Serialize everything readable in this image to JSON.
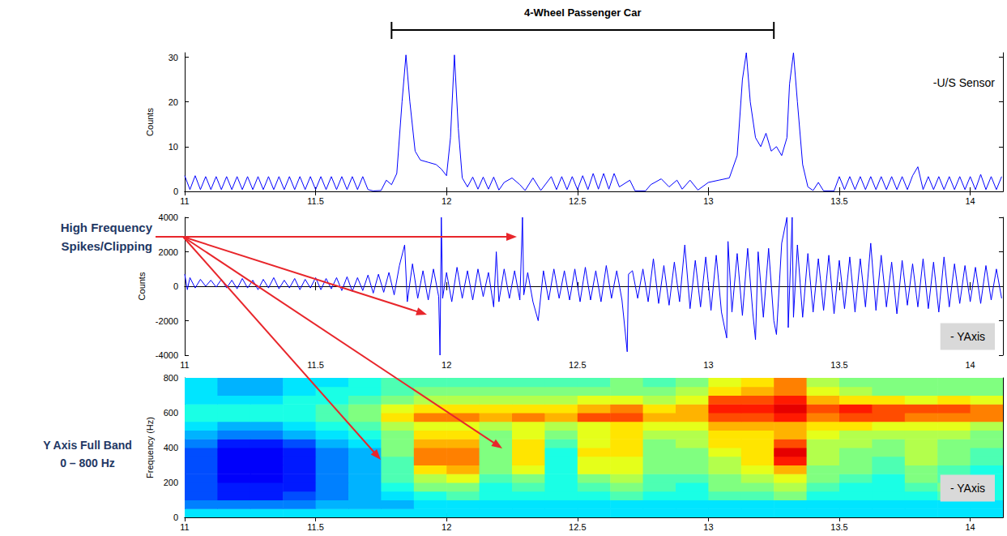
{
  "chart_data": [
    {
      "type": "line",
      "ylabel": "Counts",
      "color": "#0000ff",
      "grid": false,
      "xlim": [
        11,
        14.125
      ],
      "xticks": [
        11,
        11.5,
        12,
        12.5,
        13,
        13.5,
        14
      ],
      "ylim": [
        0,
        31
      ],
      "yticks": [
        0,
        10,
        20,
        30
      ],
      "annotations": [
        {
          "text": "4-Wheel Passenger Car",
          "x_span": [
            11.79,
            13.25
          ]
        },
        {
          "text": "-U/S Sensor"
        }
      ],
      "x": [
        11,
        11.02,
        11.04,
        11.06,
        11.08,
        11.1,
        11.12,
        11.14,
        11.16,
        11.18,
        11.2,
        11.22,
        11.24,
        11.26,
        11.28,
        11.3,
        11.32,
        11.34,
        11.36,
        11.38,
        11.4,
        11.42,
        11.44,
        11.46,
        11.48,
        11.5,
        11.52,
        11.54,
        11.56,
        11.58,
        11.6,
        11.62,
        11.64,
        11.66,
        11.68,
        11.7,
        11.72,
        11.75,
        11.77,
        11.79,
        11.81,
        11.83,
        11.845,
        11.86,
        11.88,
        11.9,
        11.93,
        11.96,
        11.98,
        12,
        12.015,
        12.03,
        12.045,
        12.06,
        12.08,
        12.1,
        12.12,
        12.14,
        12.16,
        12.18,
        12.2,
        12.22,
        12.25,
        12.28,
        12.3,
        12.33,
        12.36,
        12.4,
        12.42,
        12.44,
        12.46,
        12.48,
        12.5,
        12.52,
        12.54,
        12.56,
        12.58,
        12.6,
        12.62,
        12.64,
        12.66,
        12.7,
        12.72,
        12.76,
        12.78,
        12.82,
        12.85,
        12.88,
        12.9,
        12.93,
        12.96,
        13,
        13.04,
        13.08,
        13.11,
        13.13,
        13.145,
        13.16,
        13.18,
        13.2,
        13.22,
        13.24,
        13.26,
        13.28,
        13.3,
        13.31,
        13.325,
        13.34,
        13.36,
        13.38,
        13.4,
        13.42,
        13.44,
        13.48,
        13.5,
        13.52,
        13.54,
        13.56,
        13.58,
        13.6,
        13.62,
        13.64,
        13.66,
        13.68,
        13.7,
        13.72,
        13.74,
        13.76,
        13.78,
        13.8,
        13.82,
        13.84,
        13.86,
        13.88,
        13.9,
        13.92,
        13.94,
        13.96,
        13.98,
        14,
        14.02,
        14.04,
        14.06,
        14.08,
        14.1,
        14.12
      ],
      "values": [
        3.5,
        0.4,
        3.5,
        0.4,
        3.3,
        0.4,
        3.3,
        0.4,
        3.3,
        0.4,
        3.3,
        0.4,
        3.3,
        0.4,
        3.3,
        0.4,
        3.3,
        0.4,
        3.3,
        0.4,
        3.3,
        0.4,
        3.3,
        0.4,
        3.3,
        0.4,
        3.3,
        0.4,
        3.3,
        0.4,
        3.3,
        0.4,
        3.3,
        0.4,
        3.3,
        0.4,
        0.1,
        0.2,
        2.5,
        1.5,
        4,
        20,
        30.5,
        20,
        9,
        7,
        6.5,
        6,
        5,
        3.5,
        12,
        30.5,
        14,
        3,
        1,
        3.2,
        0.5,
        3.2,
        0.5,
        3.2,
        0.3,
        2,
        3,
        1.5,
        0.2,
        3,
        0.2,
        3.3,
        0.4,
        3.3,
        0.4,
        3.3,
        0.4,
        3.5,
        0.4,
        4,
        0.5,
        4,
        0.5,
        4,
        1,
        2.5,
        0.1,
        0.1,
        1.5,
        2.8,
        1,
        2.5,
        0.5,
        2.5,
        0.3,
        2,
        2.5,
        3,
        8,
        25,
        31,
        20,
        12,
        10,
        13,
        9,
        10,
        8,
        12,
        24,
        31,
        20,
        6,
        1,
        0.2,
        2,
        0.1,
        0.1,
        3.3,
        0.4,
        3.3,
        0.4,
        3.3,
        0.4,
        3.3,
        0.4,
        3.3,
        0.4,
        3.3,
        0.4,
        3.3,
        0.4,
        3.5,
        5.5,
        0.4,
        3.3,
        0.4,
        3.3,
        0.4,
        3.3,
        0.4,
        3.3,
        0.4,
        3.3,
        0.4,
        3.8,
        0.4,
        3.3,
        0.4,
        3.3
      ]
    },
    {
      "type": "line",
      "ylabel": "Counts",
      "color": "#0000ff",
      "grid": false,
      "xlim": [
        11,
        14.125
      ],
      "xticks": [
        11,
        11.5,
        12,
        12.5,
        13,
        13.5,
        14
      ],
      "ylim": [
        -4000,
        4000
      ],
      "yticks": [
        -4000,
        -2000,
        0,
        2000,
        4000
      ],
      "annotations": [
        {
          "text": "- YAxis"
        }
      ],
      "x": [
        11,
        11.01,
        11.02,
        11.04,
        11.06,
        11.08,
        11.1,
        11.12,
        11.14,
        11.16,
        11.18,
        11.2,
        11.22,
        11.24,
        11.26,
        11.28,
        11.3,
        11.32,
        11.34,
        11.36,
        11.38,
        11.4,
        11.42,
        11.44,
        11.46,
        11.48,
        11.5,
        11.52,
        11.54,
        11.56,
        11.58,
        11.6,
        11.62,
        11.64,
        11.66,
        11.68,
        11.7,
        11.72,
        11.74,
        11.76,
        11.78,
        11.8,
        11.82,
        11.84,
        11.85,
        11.87,
        11.89,
        11.91,
        11.93,
        11.95,
        11.97,
        11.975,
        11.98,
        11.985,
        12,
        12.02,
        12.04,
        12.06,
        12.08,
        12.1,
        12.12,
        12.14,
        12.16,
        12.18,
        12.19,
        12.2,
        12.22,
        12.24,
        12.26,
        12.28,
        12.29,
        12.295,
        12.31,
        12.33,
        12.35,
        12.37,
        12.39,
        12.41,
        12.43,
        12.45,
        12.47,
        12.49,
        12.51,
        12.53,
        12.55,
        12.57,
        12.59,
        12.61,
        12.63,
        12.65,
        12.67,
        12.69,
        12.695,
        12.71,
        12.73,
        12.75,
        12.77,
        12.79,
        12.81,
        12.83,
        12.85,
        12.87,
        12.89,
        12.91,
        12.93,
        12.95,
        12.97,
        12.99,
        13.01,
        13.03,
        13.05,
        13.07,
        13.075,
        13.09,
        13.11,
        13.13,
        13.15,
        13.17,
        13.18,
        13.19,
        13.21,
        13.23,
        13.25,
        13.26,
        13.28,
        13.3,
        13.305,
        13.32,
        13.325,
        13.34,
        13.36,
        13.38,
        13.4,
        13.42,
        13.44,
        13.46,
        13.48,
        13.5,
        13.52,
        13.54,
        13.56,
        13.58,
        13.6,
        13.62,
        13.64,
        13.66,
        13.68,
        13.7,
        13.72,
        13.74,
        13.76,
        13.78,
        13.8,
        13.82,
        13.84,
        13.86,
        13.88,
        13.9,
        13.92,
        13.94,
        13.96,
        13.98,
        14,
        14.02,
        14.04,
        14.06,
        14.08,
        14.1,
        14.12
      ],
      "values": [
        700,
        -200,
        500,
        -100,
        400,
        0,
        350,
        -50,
        400,
        -100,
        350,
        -150,
        450,
        -100,
        350,
        -200,
        400,
        -100,
        500,
        -150,
        350,
        -100,
        450,
        -200,
        400,
        -100,
        500,
        -200,
        450,
        -150,
        500,
        -250,
        550,
        -300,
        500,
        -250,
        650,
        -400,
        700,
        -350,
        800,
        -500,
        1200,
        2400,
        -900,
        1300,
        -700,
        900,
        -800,
        1000,
        -600,
        -4000,
        4000,
        -700,
        800,
        -900,
        1100,
        -700,
        900,
        -800,
        1000,
        -600,
        800,
        -1200,
        2000,
        -900,
        1000,
        -700,
        900,
        -800,
        4000,
        -500,
        800,
        -900,
        -2000,
        900,
        -800,
        1000,
        -700,
        900,
        -800,
        1000,
        -900,
        1100,
        -800,
        900,
        -900,
        1200,
        -700,
        900,
        -800,
        -3800,
        700,
        900,
        -700,
        1000,
        -900,
        1600,
        -1000,
        1200,
        -1100,
        1400,
        -900,
        2400,
        -1300,
        1500,
        -1200,
        1700,
        -1400,
        1800,
        -1500,
        -3000,
        2600,
        -1500,
        1900,
        -1700,
        2200,
        -1600,
        -3100,
        2000,
        -1800,
        2200,
        -2000,
        -2800,
        2500,
        4000,
        -2400,
        4000,
        -1800,
        2400,
        -1800,
        1900,
        -1500,
        1600,
        -1400,
        1800,
        -1600,
        1500,
        -1300,
        1700,
        -1500,
        1600,
        -1200,
        2500,
        -1400,
        1800,
        -1200,
        1400,
        -1600,
        1500,
        -1100,
        1300,
        -1200,
        1600,
        -1300,
        1400,
        -1500,
        1700,
        -1200,
        1300,
        -1000,
        1200,
        -900,
        1100,
        -1000,
        1200,
        -800,
        1000,
        -700
      ]
    },
    {
      "type": "heatmap",
      "ylabel": "Frequency (Hz)",
      "grid": false,
      "xlim": [
        11,
        14.125
      ],
      "xticks": [
        11,
        11.5,
        12,
        12.5,
        13,
        13.5,
        14
      ],
      "ylim": [
        0,
        800
      ],
      "yticks": [
        0,
        200,
        400,
        600,
        800
      ],
      "annotations": [
        {
          "text": "- YAxis"
        }
      ],
      "color_range": [
        0,
        10
      ],
      "x_edges": [
        11,
        11.125,
        11.25,
        11.375,
        11.5,
        11.625,
        11.75,
        11.875,
        12,
        12.125,
        12.25,
        12.375,
        12.5,
        12.625,
        12.75,
        12.875,
        13,
        13.125,
        13.25,
        13.375,
        13.5,
        13.625,
        13.75,
        13.875,
        14,
        14.125
      ],
      "y_edges": [
        0,
        50,
        100,
        150,
        200,
        250,
        300,
        350,
        400,
        450,
        500,
        550,
        600,
        650,
        700,
        750,
        800
      ],
      "z": [
        [
          3.5,
          3.5,
          3.5,
          3.5,
          3.5,
          3.5,
          3.5,
          3.5,
          3.5,
          3.5,
          3.5,
          3.5,
          3.5,
          3.5,
          3.5,
          3.5,
          3.5,
          3.5,
          3.5,
          3.5,
          3.5,
          3.5,
          3.5,
          3.5,
          3.5
        ],
        [
          2.5,
          2.5,
          2.5,
          2.5,
          3,
          3,
          3,
          3.5,
          3.5,
          3.5,
          3.5,
          3.5,
          3.5,
          3.5,
          3.5,
          3.5,
          3.5,
          3.5,
          3.5,
          3.5,
          3.5,
          3.5,
          3.5,
          3.5,
          3.5
        ],
        [
          2,
          1.5,
          1.5,
          2,
          2.5,
          3,
          3.5,
          4,
          4.5,
          4,
          4,
          4,
          4,
          4.5,
          4,
          4,
          4.5,
          4.5,
          5,
          4,
          4,
          4,
          4,
          4.5,
          4
        ],
        [
          2,
          1.5,
          1.5,
          1.5,
          2.5,
          3,
          4,
          5,
          5,
          4,
          4.5,
          4,
          4.5,
          5,
          4.5,
          4,
          5,
          5,
          5.5,
          4.5,
          4,
          4,
          4.5,
          5,
          4
        ],
        [
          2,
          1.2,
          1.2,
          1.5,
          2.5,
          3,
          4.5,
          5.5,
          6,
          4.5,
          5,
          4,
          5,
          5.5,
          4.5,
          4.5,
          5,
          5.5,
          6,
          5,
          4.5,
          4,
          5,
          4.5,
          4
        ],
        [
          2,
          1.2,
          1.2,
          1.5,
          2.5,
          3,
          4.5,
          6.5,
          7,
          5,
          6,
          4,
          6,
          6,
          5,
          5,
          5.5,
          6,
          7,
          5,
          5,
          4.5,
          5,
          4.5,
          4
        ],
        [
          2,
          1.2,
          1.2,
          1.5,
          2.5,
          3,
          4.5,
          7.5,
          7.5,
          5,
          6.5,
          4,
          6,
          6,
          5,
          5,
          5.5,
          6.5,
          8.5,
          5.5,
          5,
          4.5,
          5.5,
          5,
          4.5
        ],
        [
          2,
          1.2,
          1.2,
          1.5,
          2.5,
          3,
          5,
          7.5,
          7.5,
          5,
          6.5,
          4,
          6.5,
          6.5,
          5,
          5,
          6,
          6.5,
          9,
          5.5,
          5,
          5,
          5.5,
          5,
          4.5
        ],
        [
          2.5,
          1.5,
          1.5,
          2,
          3,
          3.5,
          5,
          7,
          7,
          5,
          6.5,
          4.5,
          6,
          6.5,
          5,
          5.5,
          6.5,
          6.5,
          8,
          5.5,
          5.5,
          5,
          5.5,
          5,
          5
        ],
        [
          3,
          2.5,
          2.5,
          3,
          3.5,
          4,
          5,
          6.5,
          6.5,
          5,
          6,
          5,
          6,
          6.5,
          5.5,
          5.5,
          6.5,
          6.5,
          7,
          6,
          5.5,
          5.5,
          5.5,
          5.5,
          5
        ],
        [
          3.5,
          3,
          3,
          3.5,
          4,
          4.5,
          5.5,
          6,
          6,
          5.5,
          6,
          5.5,
          6,
          6.5,
          6,
          6,
          7,
          7,
          7,
          6.5,
          6.5,
          6,
          6,
          6,
          5.5
        ],
        [
          4,
          4,
          4,
          4,
          4.5,
          5,
          6.5,
          7.5,
          7.5,
          7,
          7.5,
          7,
          8,
          8,
          7,
          7,
          8,
          8,
          8.5,
          7.5,
          8,
          8,
          7.5,
          7.5,
          7.5
        ],
        [
          4,
          4,
          4,
          4,
          4.5,
          5,
          6,
          6.5,
          6.5,
          6.5,
          6.5,
          6.5,
          7,
          7.5,
          6.5,
          7,
          8.5,
          8.5,
          9,
          8,
          8.5,
          8,
          8,
          8,
          7.5
        ],
        [
          3.5,
          3.5,
          3.5,
          4,
          4,
          4.5,
          5,
          5.5,
          5.5,
          5.5,
          5.5,
          5.5,
          6,
          6,
          5.5,
          6,
          8,
          8,
          8.5,
          7,
          6.5,
          6.5,
          6,
          6.5,
          6
        ],
        [
          3.5,
          3,
          3,
          3.5,
          4,
          4,
          4.5,
          5,
          5,
          5,
          5,
          5,
          5,
          5,
          5,
          5.5,
          6.5,
          7,
          7.5,
          6,
          5.5,
          5,
          5,
          5,
          5
        ],
        [
          3.5,
          3,
          3,
          3.5,
          3.5,
          4,
          4.5,
          4.5,
          4.5,
          4.5,
          4.5,
          4.5,
          4.5,
          5,
          4.5,
          5,
          6,
          6.5,
          7.5,
          5.5,
          5,
          5,
          5,
          5,
          5
        ]
      ]
    }
  ],
  "annotations": [
    {
      "text": "High Frequency\nSpikes/Clipping"
    },
    {
      "text": "Y Axis Full Band\n0 – 800 Hz"
    }
  ]
}
